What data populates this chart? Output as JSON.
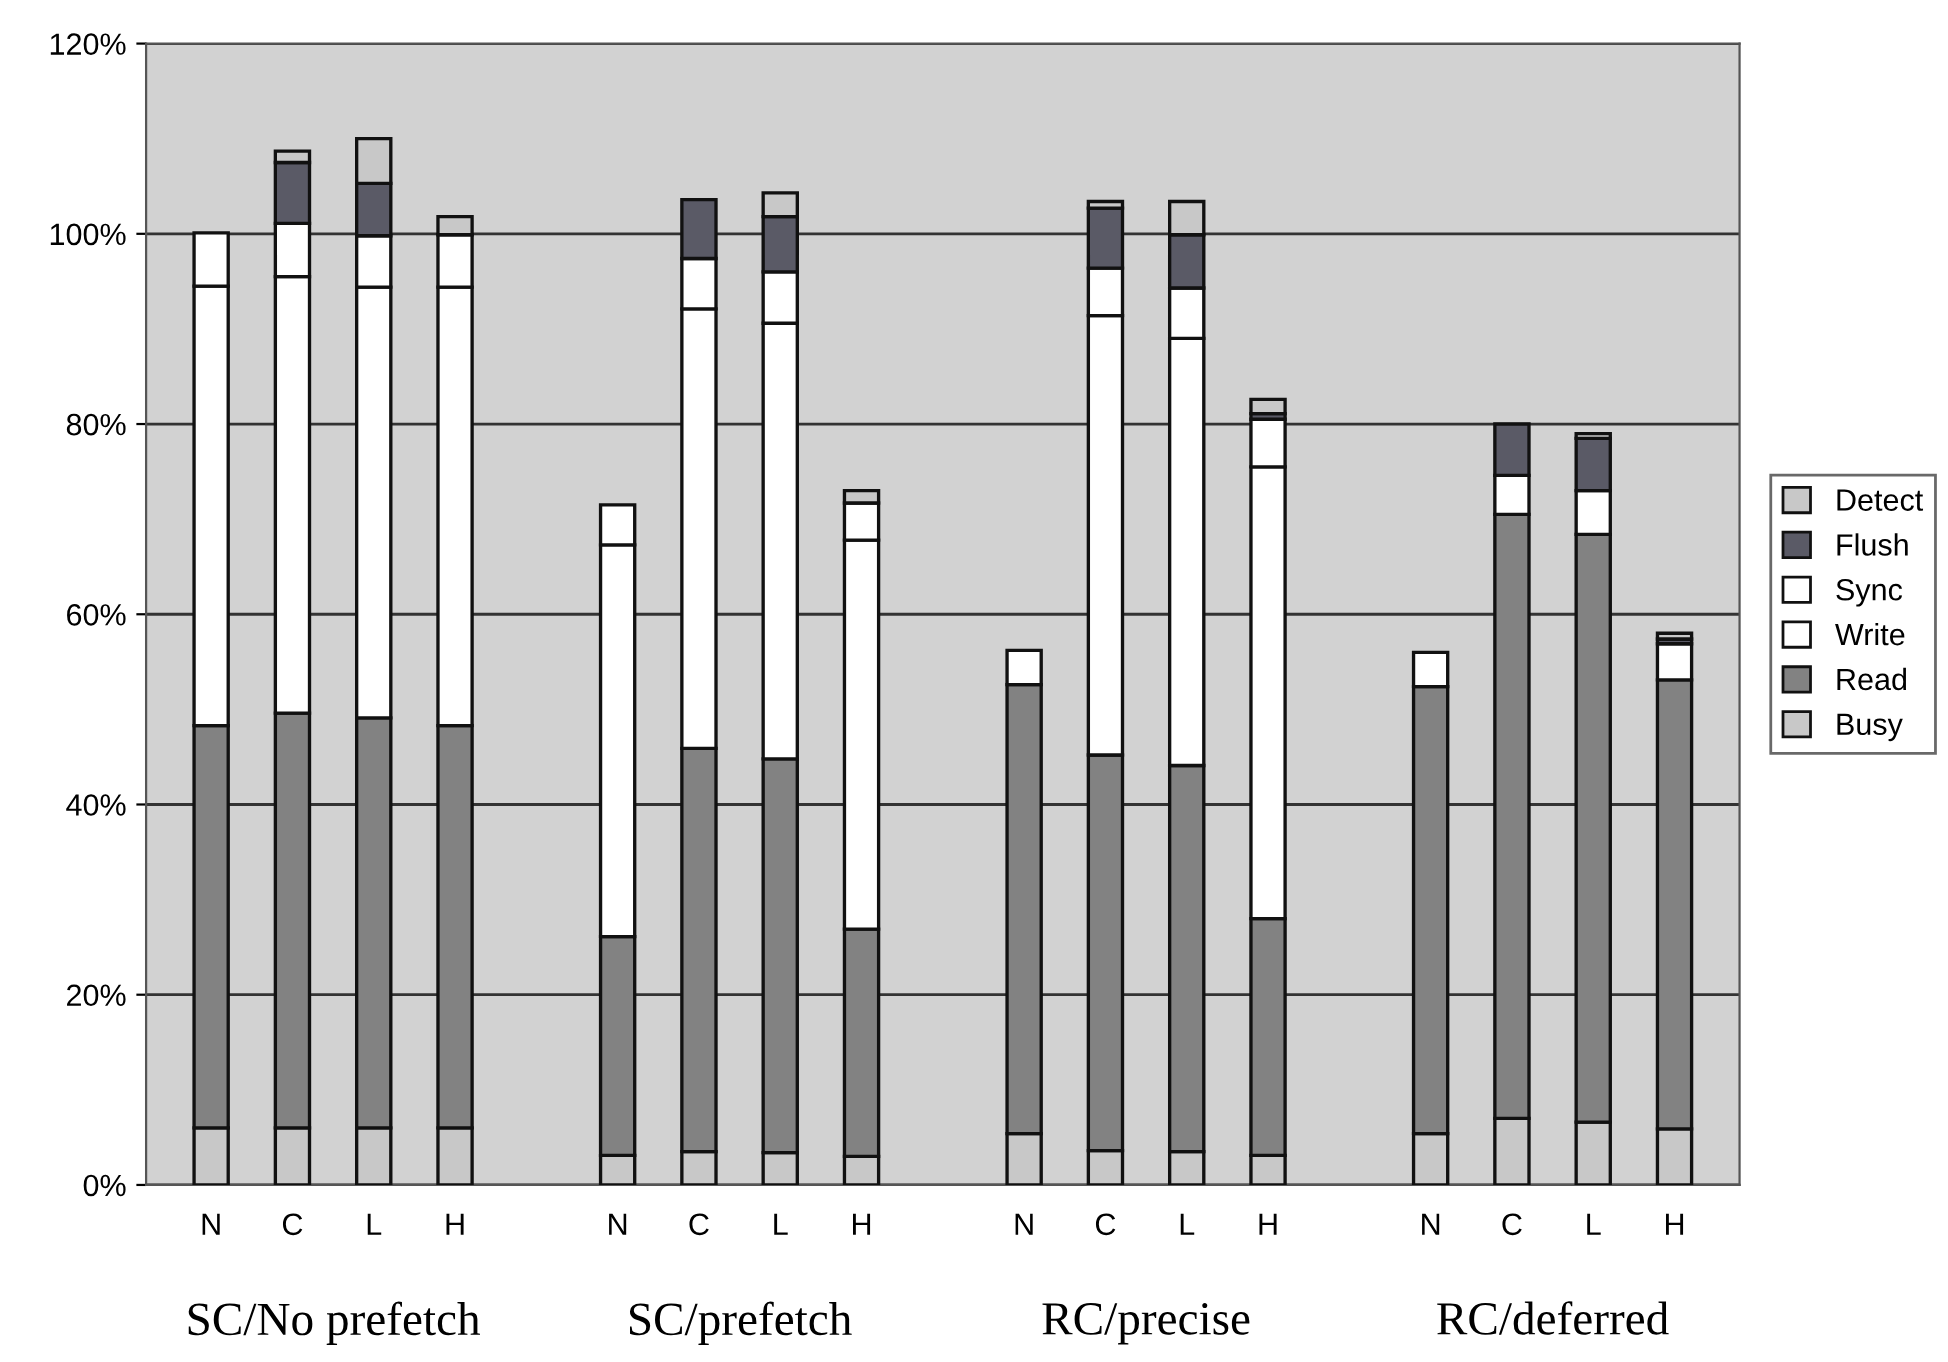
{
  "chart_data": {
    "type": "bar",
    "stacked": true,
    "categories": [
      "N",
      "C",
      "L",
      "H",
      null,
      "N",
      "C",
      "L",
      "H",
      null,
      "N",
      "C",
      "L",
      "H",
      null,
      "N",
      "C",
      "L",
      "H"
    ],
    "series": [
      {
        "name": "Busy",
        "color": "#c8c8c8",
        "values": [
          6,
          6,
          6,
          6,
          null,
          3.1,
          3.5,
          3.4,
          3.0,
          null,
          5.4,
          3.6,
          3.5,
          3.1,
          null,
          5.4,
          7.0,
          6.6,
          5.9
        ]
      },
      {
        "name": "Read",
        "color": "#828282",
        "values": [
          42.3,
          43.6,
          43.1,
          42.3,
          null,
          23.0,
          42.4,
          41.4,
          23.9,
          null,
          47.2,
          41.6,
          40.6,
          24.9,
          null,
          47.0,
          63.5,
          61.8,
          47.2
        ]
      },
      {
        "name": "Write",
        "color": "#ffffff",
        "values": [
          46.2,
          45.9,
          45.3,
          46.1,
          null,
          41.2,
          46.2,
          45.8,
          40.9,
          null,
          null,
          46.2,
          44.9,
          47.5,
          null,
          null,
          null,
          null,
          null
        ]
      },
      {
        "name": "Sync",
        "color": "#ffffff",
        "values": [
          5.6,
          5.6,
          5.4,
          5.5,
          null,
          4.2,
          5.3,
          5.4,
          3.9,
          null,
          3.6,
          5.0,
          5.3,
          5.0,
          null,
          3.6,
          4.1,
          4.6,
          3.8
        ]
      },
      {
        "name": "Flush",
        "color": "#5a5a66",
        "values": [
          null,
          6.4,
          5.5,
          null,
          null,
          null,
          6.2,
          5.8,
          null,
          null,
          null,
          6.3,
          5.6,
          0.6,
          null,
          null,
          5.4,
          5.5,
          0.5
        ]
      },
      {
        "name": "Detect",
        "color": "#c8c8c8",
        "values": [
          null,
          1.2,
          4.7,
          1.9,
          null,
          null,
          null,
          2.5,
          1.3,
          null,
          null,
          0.7,
          3.5,
          1.5,
          null,
          null,
          null,
          0.5,
          0.6
        ]
      }
    ],
    "ylim": [
      0,
      120
    ],
    "yticks": [
      {
        "value": 0,
        "label": "0%"
      },
      {
        "value": 20,
        "label": "20%"
      },
      {
        "value": 40,
        "label": "40%"
      },
      {
        "value": 60,
        "label": "60%"
      },
      {
        "value": 80,
        "label": "80%"
      },
      {
        "value": 100,
        "label": "100%"
      },
      {
        "value": 120,
        "label": "120%"
      }
    ],
    "grid": "y",
    "legend": "right",
    "annotations": [
      "SC/No prefetch",
      "SC/prefetch",
      "RC/precise",
      "RC/deferred"
    ]
  }
}
